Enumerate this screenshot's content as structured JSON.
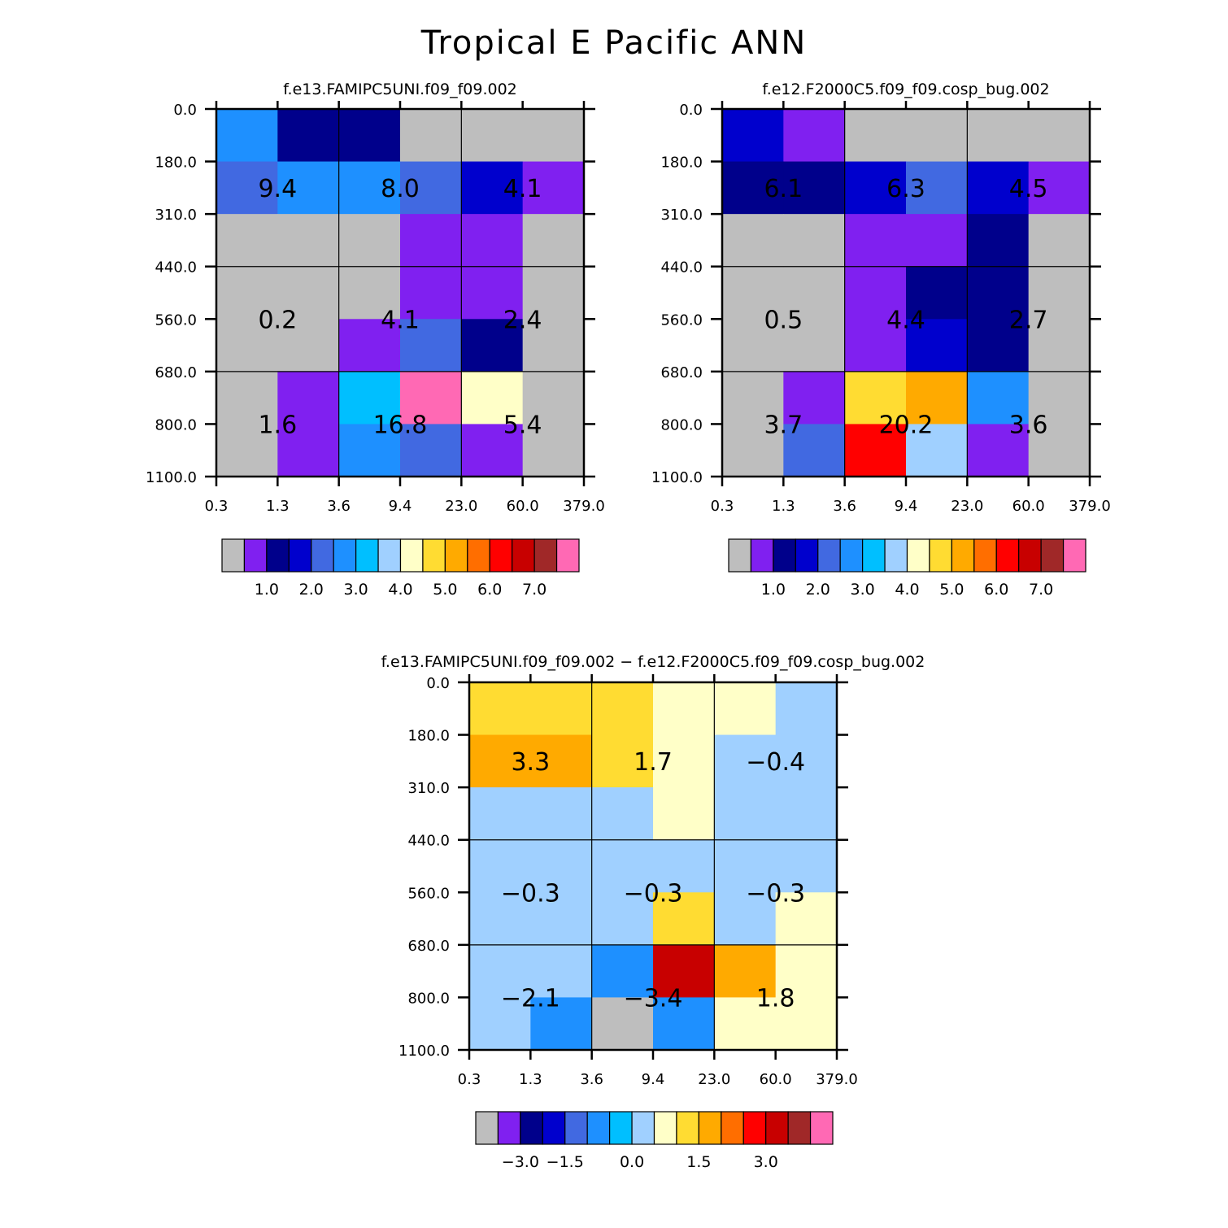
{
  "title": "Tropical E Pacific ANN",
  "x_tick_labels": [
    "0.3",
    "1.3",
    "3.6",
    "9.4",
    "23.0",
    "60.0",
    "379.0"
  ],
  "y_tick_labels": [
    "0.0",
    "180.0",
    "310.0",
    "440.0",
    "560.0",
    "680.0",
    "800.0",
    "1100.0"
  ],
  "colors": {
    "palette": [
      "#bebebe",
      "#8020f0",
      "#00008b",
      "#0000cd",
      "#4169e1",
      "#1e90ff",
      "#00bfff",
      "#a0d0ff",
      "#ffffc8",
      "#ffdc32",
      "#ffaa00",
      "#ff6e00",
      "#ff0000",
      "#c80000",
      "#a02828",
      "#ff69b4"
    ]
  },
  "chart_data": [
    {
      "type": "heatmap",
      "title": "f.e13.FAMIPC5UNI.f09_f09.002",
      "x_edges": [
        "0.3",
        "1.3",
        "3.6",
        "9.4",
        "23.0",
        "60.0",
        "379.0"
      ],
      "y_edges": [
        "0.0",
        "180.0",
        "310.0",
        "440.0",
        "560.0",
        "680.0",
        "800.0",
        "1100.0"
      ],
      "cell_color_index": [
        [
          5,
          2,
          2,
          0,
          0,
          0
        ],
        [
          4,
          5,
          5,
          4,
          3,
          1
        ],
        [
          0,
          0,
          0,
          1,
          1,
          0
        ],
        [
          0,
          0,
          0,
          1,
          1,
          0
        ],
        [
          0,
          0,
          1,
          4,
          2,
          0
        ],
        [
          0,
          1,
          6,
          15,
          8,
          0
        ],
        [
          0,
          1,
          5,
          4,
          1,
          0
        ]
      ],
      "block_values": [
        {
          "row": 0,
          "col": 0,
          "value": "9.4"
        },
        {
          "row": 0,
          "col": 1,
          "value": "8.0"
        },
        {
          "row": 0,
          "col": 2,
          "value": "4.1"
        },
        {
          "row": 1,
          "col": 0,
          "value": "0.2"
        },
        {
          "row": 1,
          "col": 1,
          "value": "4.1"
        },
        {
          "row": 1,
          "col": 2,
          "value": "2.4"
        },
        {
          "row": 2,
          "col": 0,
          "value": "1.6"
        },
        {
          "row": 2,
          "col": 1,
          "value": "16.8"
        },
        {
          "row": 2,
          "col": 2,
          "value": "5.4"
        }
      ],
      "colorbar": {
        "labels": [
          "1.0",
          "2.0",
          "3.0",
          "4.0",
          "5.0",
          "6.0",
          "7.0"
        ]
      }
    },
    {
      "type": "heatmap",
      "title": "f.e12.F2000C5.f09_f09.cosp_bug.002",
      "x_edges": [
        "0.3",
        "1.3",
        "3.6",
        "9.4",
        "23.0",
        "60.0",
        "379.0"
      ],
      "y_edges": [
        "0.0",
        "180.0",
        "310.0",
        "440.0",
        "560.0",
        "680.0",
        "800.0",
        "1100.0"
      ],
      "cell_color_index": [
        [
          3,
          1,
          0,
          0,
          0,
          0
        ],
        [
          2,
          2,
          3,
          4,
          3,
          1
        ],
        [
          0,
          0,
          1,
          1,
          2,
          0
        ],
        [
          0,
          0,
          1,
          2,
          2,
          0
        ],
        [
          0,
          0,
          1,
          3,
          2,
          0
        ],
        [
          0,
          1,
          9,
          10,
          5,
          0
        ],
        [
          0,
          4,
          12,
          7,
          1,
          0
        ]
      ],
      "block_values": [
        {
          "row": 0,
          "col": 0,
          "value": "6.1"
        },
        {
          "row": 0,
          "col": 1,
          "value": "6.3"
        },
        {
          "row": 0,
          "col": 2,
          "value": "4.5"
        },
        {
          "row": 1,
          "col": 0,
          "value": "0.5"
        },
        {
          "row": 1,
          "col": 1,
          "value": "4.4"
        },
        {
          "row": 1,
          "col": 2,
          "value": "2.7"
        },
        {
          "row": 2,
          "col": 0,
          "value": "3.7"
        },
        {
          "row": 2,
          "col": 1,
          "value": "20.2"
        },
        {
          "row": 2,
          "col": 2,
          "value": "3.6"
        }
      ],
      "colorbar": {
        "labels": [
          "1.0",
          "2.0",
          "3.0",
          "4.0",
          "5.0",
          "6.0",
          "7.0"
        ]
      }
    },
    {
      "type": "heatmap",
      "title": "f.e13.FAMIPC5UNI.f09_f09.002 − f.e12.F2000C5.f09_f09.cosp_bug.002",
      "x_edges": [
        "0.3",
        "1.3",
        "3.6",
        "9.4",
        "23.0",
        "60.0",
        "379.0"
      ],
      "y_edges": [
        "0.0",
        "180.0",
        "310.0",
        "440.0",
        "560.0",
        "680.0",
        "800.0",
        "1100.0"
      ],
      "cell_color_index": [
        [
          9,
          9,
          9,
          8,
          8,
          7
        ],
        [
          10,
          10,
          9,
          8,
          7,
          7
        ],
        [
          7,
          7,
          7,
          8,
          7,
          7
        ],
        [
          7,
          7,
          7,
          7,
          7,
          7
        ],
        [
          7,
          7,
          7,
          9,
          7,
          8
        ],
        [
          7,
          7,
          5,
          13,
          10,
          8
        ],
        [
          7,
          5,
          0,
          5,
          8,
          8
        ]
      ],
      "block_values": [
        {
          "row": 0,
          "col": 0,
          "value": "3.3"
        },
        {
          "row": 0,
          "col": 1,
          "value": "1.7"
        },
        {
          "row": 0,
          "col": 2,
          "value": "−0.4"
        },
        {
          "row": 1,
          "col": 0,
          "value": "−0.3"
        },
        {
          "row": 1,
          "col": 1,
          "value": "−0.3"
        },
        {
          "row": 1,
          "col": 2,
          "value": "−0.3"
        },
        {
          "row": 2,
          "col": 0,
          "value": "−2.1"
        },
        {
          "row": 2,
          "col": 1,
          "value": "−3.4"
        },
        {
          "row": 2,
          "col": 2,
          "value": "1.8"
        }
      ],
      "colorbar": {
        "labels": [
          "−3.0",
          "−1.5",
          "0.0",
          "1.5",
          "3.0"
        ]
      }
    }
  ]
}
